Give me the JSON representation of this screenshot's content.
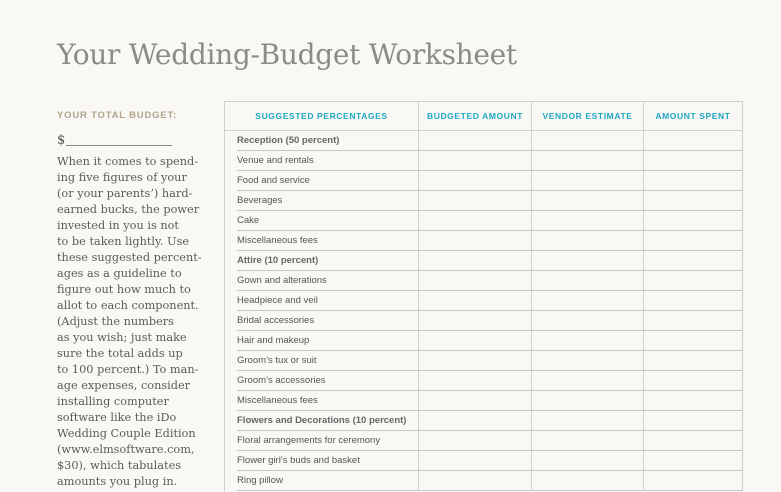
{
  "title": "Your Wedding-Budget Worksheet",
  "sidebar": {
    "budget_label": "YOUR TOTAL BUDGET:",
    "currency_symbol": "$",
    "intro_lines": [
      "When it comes to spend-",
      "ing five figures of your",
      "(or your parents’) hard-",
      "earned bucks, the power",
      "invested in you is not",
      "to be taken lightly. Use",
      "these suggested percent-",
      "ages as a guideline to",
      "figure out how much to",
      "allot to each component.",
      "(Adjust the numbers",
      "as you wish; just make",
      "sure the total adds up",
      "to 100 percent.) To man-",
      "age expenses, consider",
      "installing computer",
      "software like the iDo",
      "Wedding Couple Edition",
      "(www.elmsoftware.com,",
      "$30), which tabulates",
      "amounts you plug in."
    ]
  },
  "table": {
    "headers": [
      "SUGGESTED PERCENTAGES",
      "BUDGETED AMOUNT",
      "VENDOR ESTIMATE",
      "AMOUNT SPENT"
    ],
    "rows": [
      {
        "label": "Reception (50 percent)",
        "category": true
      },
      {
        "label": "Venue and rentals"
      },
      {
        "label": "Food and service"
      },
      {
        "label": "Beverages"
      },
      {
        "label": "Cake"
      },
      {
        "label": "Miscellaneous fees"
      },
      {
        "label": "Attire (10 percent)",
        "category": true
      },
      {
        "label": "Gown and alterations"
      },
      {
        "label": "Headpiece and veil"
      },
      {
        "label": "Bridal accessories"
      },
      {
        "label": "Hair and makeup"
      },
      {
        "label": "Groom’s tux or suit"
      },
      {
        "label": "Groom’s accessories"
      },
      {
        "label": "Miscellaneous fees"
      },
      {
        "label": "Flowers and Decorations (10 percent)",
        "category": true
      },
      {
        "label": "Floral arrangements for ceremony"
      },
      {
        "label": "Flower girl’s buds and basket"
      },
      {
        "label": "Ring pillow"
      }
    ]
  },
  "colors": {
    "header_accent": "#1fa7c3",
    "budget_label": "#b3a58c",
    "background": "#f9f8f4"
  }
}
